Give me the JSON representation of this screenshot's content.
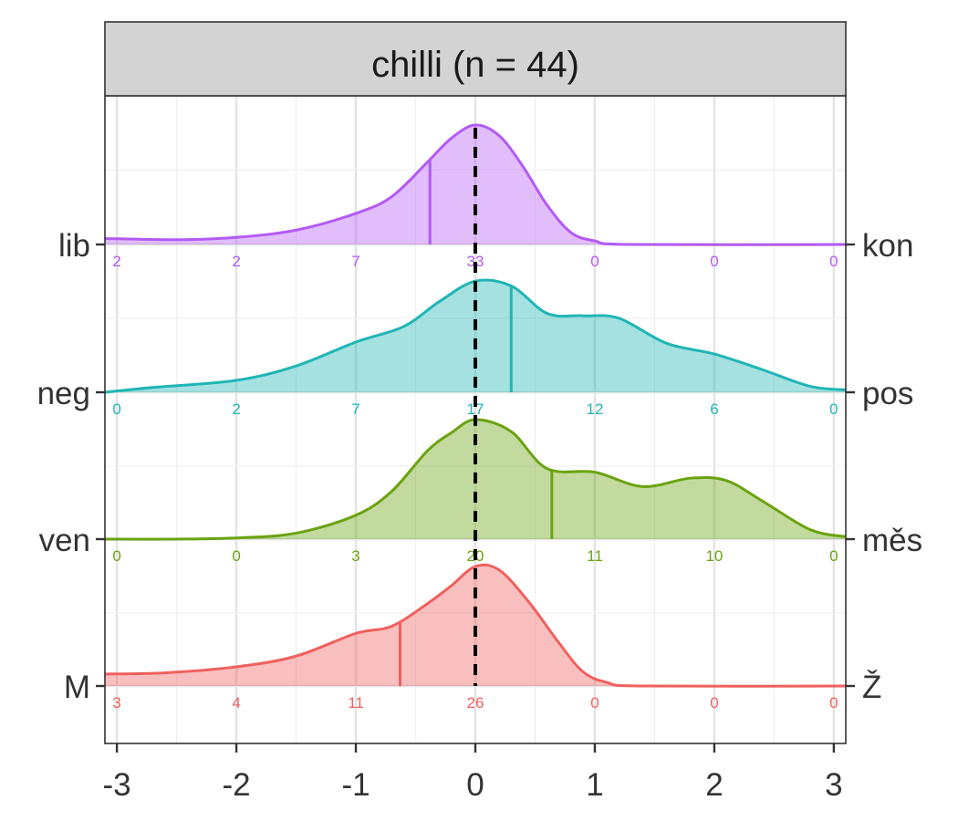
{
  "chart_data": {
    "type": "ridgeline",
    "title": "chilli (n = 44)",
    "xlabel": "",
    "ylabel": "",
    "xlim": [
      -3.1,
      3.1
    ],
    "x_ticks": [
      "-3",
      "-2",
      "-1",
      "0",
      "1",
      "2",
      "3"
    ],
    "x_tick_values": [
      -3,
      -2,
      -1,
      0,
      1,
      2,
      3
    ],
    "grid": true,
    "reference_line": {
      "x": 0,
      "style": "dashed",
      "color": "#000000"
    },
    "count_positions": [
      -3,
      -2,
      -1,
      0,
      1,
      2,
      3
    ],
    "rows": [
      {
        "left_label": "lib",
        "right_label": "kon",
        "color": "#B35AF5",
        "mean": -0.38,
        "counts": [
          "2",
          "2",
          "7",
          "33",
          "0",
          "0",
          "0"
        ],
        "density": [
          [
            -3.1,
            0.05
          ],
          [
            -2.5,
            0.04
          ],
          [
            -2.0,
            0.06
          ],
          [
            -1.5,
            0.12
          ],
          [
            -1.0,
            0.26
          ],
          [
            -0.7,
            0.4
          ],
          [
            -0.4,
            0.69
          ],
          [
            -0.2,
            0.89
          ],
          [
            0.0,
            1.0
          ],
          [
            0.2,
            0.91
          ],
          [
            0.4,
            0.65
          ],
          [
            0.6,
            0.33
          ],
          [
            0.8,
            0.1
          ],
          [
            1.0,
            0.03
          ],
          [
            1.3,
            0.0
          ],
          [
            3.1,
            0.0
          ]
        ]
      },
      {
        "left_label": "neg",
        "right_label": "pos",
        "color": "#1FB5B5",
        "mean": 0.3,
        "counts": [
          "0",
          "2",
          "7",
          "17",
          "12",
          "6",
          "0"
        ],
        "density": [
          [
            -3.1,
            0.0
          ],
          [
            -2.7,
            0.04
          ],
          [
            -2.0,
            0.1
          ],
          [
            -1.5,
            0.22
          ],
          [
            -1.0,
            0.42
          ],
          [
            -0.6,
            0.55
          ],
          [
            -0.3,
            0.76
          ],
          [
            0.0,
            0.93
          ],
          [
            0.3,
            0.89
          ],
          [
            0.6,
            0.66
          ],
          [
            0.9,
            0.64
          ],
          [
            1.2,
            0.62
          ],
          [
            1.6,
            0.41
          ],
          [
            2.0,
            0.32
          ],
          [
            2.4,
            0.19
          ],
          [
            2.8,
            0.05
          ],
          [
            3.1,
            0.02
          ]
        ]
      },
      {
        "left_label": "ven",
        "right_label": "měs",
        "color": "#6AA310",
        "mean": 0.64,
        "counts": [
          "0",
          "0",
          "3",
          "20",
          "11",
          "10",
          "0"
        ],
        "density": [
          [
            -3.1,
            0.0
          ],
          [
            -2.5,
            0.0
          ],
          [
            -2.0,
            0.01
          ],
          [
            -1.5,
            0.05
          ],
          [
            -1.0,
            0.2
          ],
          [
            -0.7,
            0.4
          ],
          [
            -0.4,
            0.74
          ],
          [
            -0.2,
            0.89
          ],
          [
            0.0,
            1.0
          ],
          [
            0.3,
            0.9
          ],
          [
            0.6,
            0.59
          ],
          [
            1.0,
            0.56
          ],
          [
            1.4,
            0.44
          ],
          [
            1.8,
            0.51
          ],
          [
            2.1,
            0.49
          ],
          [
            2.4,
            0.32
          ],
          [
            2.8,
            0.08
          ],
          [
            3.1,
            0.02
          ]
        ]
      },
      {
        "left_label": "M",
        "right_label": "Ž",
        "color": "#F0605E",
        "mean": -0.63,
        "counts": [
          "3",
          "4",
          "11",
          "26",
          "0",
          "0",
          "0"
        ],
        "density": [
          [
            -3.1,
            0.1
          ],
          [
            -2.6,
            0.11
          ],
          [
            -2.0,
            0.16
          ],
          [
            -1.5,
            0.25
          ],
          [
            -1.0,
            0.44
          ],
          [
            -0.7,
            0.5
          ],
          [
            -0.4,
            0.69
          ],
          [
            -0.2,
            0.84
          ],
          [
            0.0,
            1.0
          ],
          [
            0.2,
            0.97
          ],
          [
            0.45,
            0.7
          ],
          [
            0.7,
            0.36
          ],
          [
            0.9,
            0.12
          ],
          [
            1.1,
            0.03
          ],
          [
            1.4,
            0.0
          ],
          [
            3.1,
            0.0
          ]
        ]
      }
    ]
  }
}
